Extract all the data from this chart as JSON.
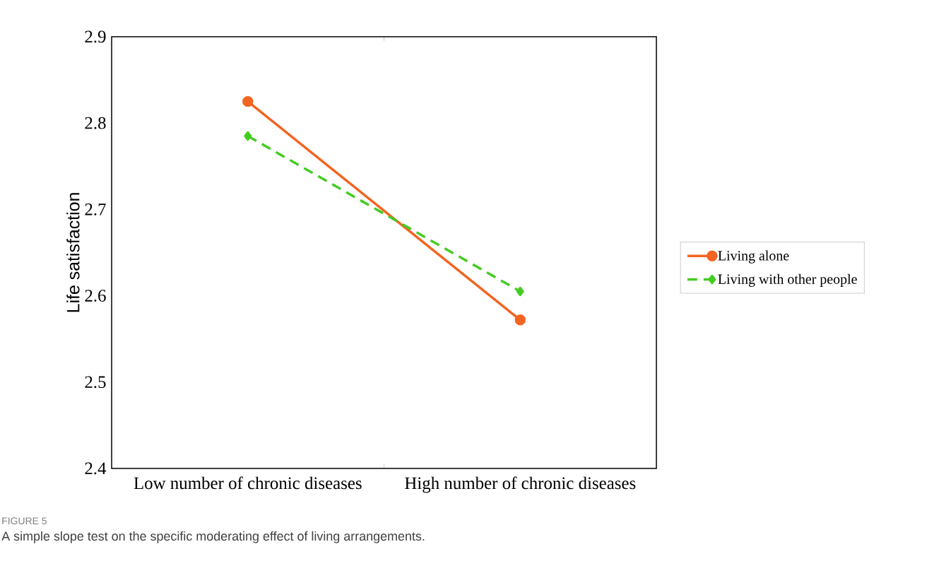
{
  "chart_data": {
    "type": "line",
    "ylabel": "Life satisfaction",
    "categories": [
      "Low number of chronic diseases",
      "High number of chronic diseases"
    ],
    "series": [
      {
        "name": "Living alone",
        "color": "#f26522",
        "values": [
          2.825,
          2.572
        ],
        "marker": "circle",
        "line_style": "solid"
      },
      {
        "name": "Living with other people",
        "color": "#44cc22",
        "values": [
          2.785,
          2.605
        ],
        "marker": "diamond",
        "line_style": "dashed"
      }
    ],
    "ylim": [
      2.4,
      2.9
    ],
    "yticks": [
      2.4,
      2.5,
      2.6,
      2.7,
      2.8,
      2.9
    ],
    "legend": "right",
    "annotations": [
      "FIGURE 5",
      "A simple slope test on the specific moderating effect of living arrangements."
    ]
  }
}
